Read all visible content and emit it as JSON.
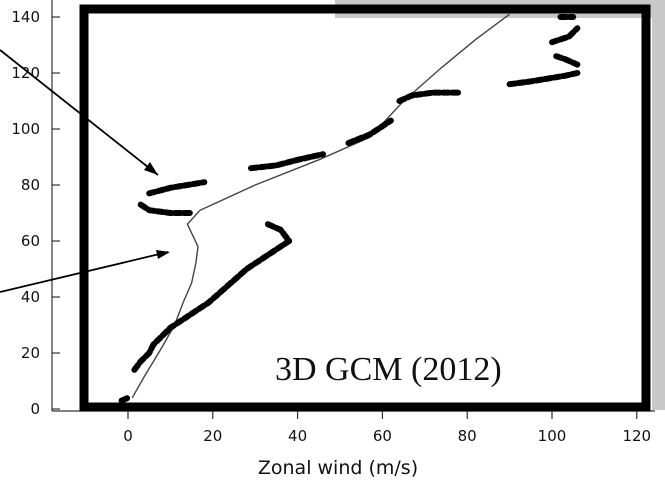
{
  "chart_data": {
    "type": "line",
    "title": "",
    "xlabel": "Zonal wind (m/s)",
    "ylabel": "",
    "xlim": [
      -10,
      120
    ],
    "ylim": [
      0,
      145
    ],
    "x_ticks": [
      0,
      20,
      40,
      60,
      80,
      100,
      120
    ],
    "x_tick_labels": [
      "0",
      "20",
      "40",
      "60",
      "80",
      "100",
      "120"
    ],
    "y_ticks": [
      0,
      20,
      40,
      60,
      80,
      100,
      120,
      140
    ],
    "y_tick_labels": [
      "0",
      "20",
      "40",
      "60",
      "80",
      "100",
      "120",
      "140"
    ],
    "grid": false,
    "annotations": [
      {
        "text": "3D GCM (2012)"
      }
    ],
    "colors": {
      "frame": "#000000",
      "model_line": "#444444",
      "observations": "#000000",
      "panel": "#c8c8c8"
    },
    "series": [
      {
        "style": "thin-line",
        "points": [
          [
            1,
            4
          ],
          [
            4,
            12
          ],
          [
            8,
            22
          ],
          [
            11,
            30
          ],
          [
            13,
            38
          ],
          [
            15,
            45
          ],
          [
            16,
            52
          ],
          [
            16.5,
            58
          ],
          [
            14,
            66
          ],
          [
            17,
            71
          ],
          [
            30,
            80
          ],
          [
            45,
            89
          ],
          [
            57,
            97
          ],
          [
            65,
            110
          ],
          [
            74,
            122
          ],
          [
            82,
            132
          ],
          [
            90,
            141
          ]
        ]
      },
      {
        "style": "thick-dashed-observations",
        "segments": [
          [
            [
              -1.5,
              3
            ],
            [
              0,
              4
            ]
          ],
          [
            [
              1.5,
              14
            ],
            [
              3,
              17
            ],
            [
              5,
              20
            ],
            [
              6,
              23
            ],
            [
              8,
              26
            ],
            [
              10,
              29
            ],
            [
              13,
              32
            ],
            [
              16,
              35
            ],
            [
              19,
              38
            ],
            [
              22,
              42
            ],
            [
              25,
              46
            ],
            [
              28,
              50
            ],
            [
              31,
              53
            ],
            [
              35,
              57
            ],
            [
              38,
              60
            ]
          ],
          [
            [
              33,
              66
            ],
            [
              36,
              64
            ],
            [
              37,
              62
            ],
            [
              38,
              60
            ]
          ],
          [
            [
              3,
              73
            ],
            [
              5,
              71
            ],
            [
              10,
              70
            ],
            [
              15,
              70
            ]
          ],
          [
            [
              5,
              77
            ],
            [
              10,
              79
            ],
            [
              18,
              81
            ]
          ],
          [
            [
              29,
              86
            ],
            [
              35,
              87
            ],
            [
              40,
              89
            ],
            [
              46,
              91
            ]
          ],
          [
            [
              52,
              95
            ],
            [
              57,
              98
            ],
            [
              62,
              103
            ]
          ],
          [
            [
              64,
              110
            ],
            [
              67,
              112
            ],
            [
              72,
              113
            ],
            [
              78,
              113
            ]
          ],
          [
            [
              90,
              116
            ],
            [
              95,
              117
            ],
            [
              103,
              119
            ],
            [
              106,
              120
            ]
          ],
          [
            [
              101,
              126
            ],
            [
              103,
              125
            ],
            [
              106,
              123
            ]
          ],
          [
            [
              100,
              131
            ],
            [
              104,
              133
            ],
            [
              106,
              136
            ]
          ],
          [
            [
              102,
              140
            ],
            [
              105,
              140
            ]
          ]
        ]
      }
    ]
  }
}
